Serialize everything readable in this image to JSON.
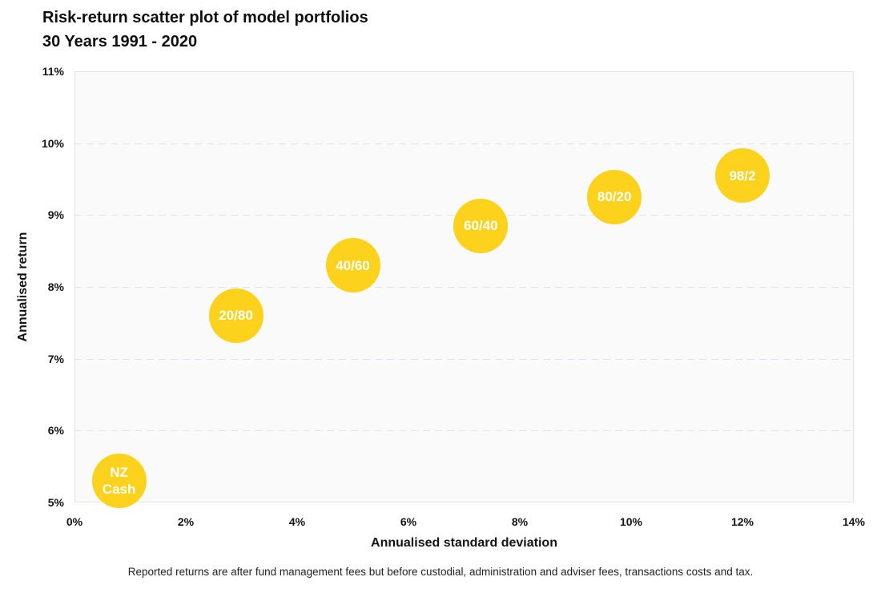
{
  "title": {
    "line1": "Risk-return scatter plot of model portfolios",
    "line2": "30 Years 1991 - 2020"
  },
  "footer": "Reported returns are after fund management fees but before custodial, administration and adviser fees, transactions costs and tax.",
  "colors": {
    "bubble": "#fcd21c",
    "bubble_text": "#ffffff",
    "plot_background": "#fafafa",
    "plot_border": "#e3e3e3",
    "gridline": "#e1e1ec",
    "text": "#141414"
  },
  "chart_data": {
    "type": "scatter",
    "title": "Risk-return scatter plot of model portfolios",
    "subtitle": "30 Years 1991 - 2020",
    "xlabel": "Annualised standard deviation",
    "ylabel": "Annualised return",
    "xlim": [
      0,
      14
    ],
    "ylim": [
      5,
      11
    ],
    "grid": "horizontal-dashed",
    "legend": "none",
    "x_ticks": [
      {
        "v": 0,
        "label": "0%"
      },
      {
        "v": 2,
        "label": "2%"
      },
      {
        "v": 4,
        "label": "4%"
      },
      {
        "v": 6,
        "label": "6%"
      },
      {
        "v": 8,
        "label": "8%"
      },
      {
        "v": 10,
        "label": "10%"
      },
      {
        "v": 12,
        "label": "12%"
      },
      {
        "v": 14,
        "label": "14%"
      }
    ],
    "y_ticks": [
      {
        "v": 5,
        "label": "5%"
      },
      {
        "v": 6,
        "label": "6%"
      },
      {
        "v": 7,
        "label": "7%"
      },
      {
        "v": 8,
        "label": "8%"
      },
      {
        "v": 9,
        "label": "9%"
      },
      {
        "v": 10,
        "label": "10%"
      },
      {
        "v": 11,
        "label": "11%"
      }
    ],
    "points": [
      {
        "label": "NZ Cash",
        "label_lines": [
          "NZ",
          "Cash"
        ],
        "x": 0.8,
        "y": 5.3
      },
      {
        "label": "20/80",
        "label_lines": [
          "20/80"
        ],
        "x": 2.9,
        "y": 7.6
      },
      {
        "label": "40/60",
        "label_lines": [
          "40/60"
        ],
        "x": 5.0,
        "y": 8.3
      },
      {
        "label": "60/40",
        "label_lines": [
          "60/40"
        ],
        "x": 7.3,
        "y": 8.85
      },
      {
        "label": "80/20",
        "label_lines": [
          "80/20"
        ],
        "x": 9.7,
        "y": 9.25
      },
      {
        "label": "98/2",
        "label_lines": [
          "98/2"
        ],
        "x": 12.0,
        "y": 9.55
      }
    ]
  }
}
